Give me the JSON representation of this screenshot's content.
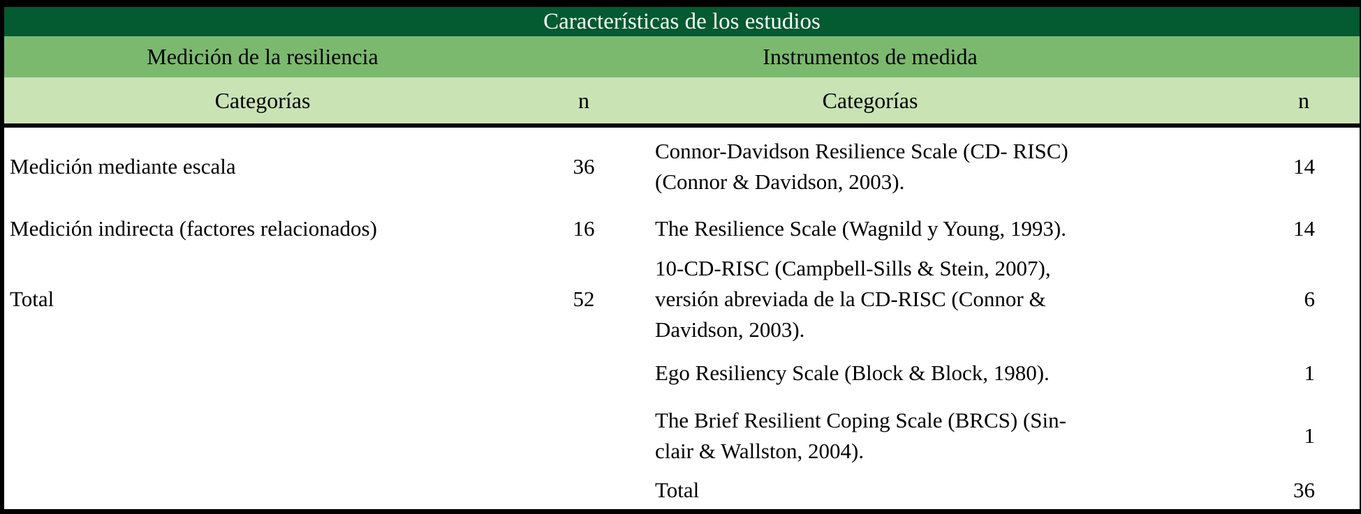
{
  "title": "Características de los estudios",
  "table": {
    "left": {
      "subheader": "Medición de la resiliencia",
      "col_category": "Categorías",
      "col_n": "n",
      "rows": [
        {
          "category": "Medición mediante escala",
          "n": "36"
        },
        {
          "category": "Medición indirecta (factores relacionados)",
          "n": "16"
        },
        {
          "category": "Total",
          "n": "52"
        }
      ]
    },
    "right": {
      "subheader": "Instrumentos de medida",
      "col_category": "Categorías",
      "col_n": "n",
      "rows": [
        {
          "category": "Connor-Davidson Resilience Scale (CD- RISC)\n(Connor & Davidson, 2003).",
          "n": "14"
        },
        {
          "category": "The Resilience Scale (Wagnild y Young, 1993).",
          "n": "14"
        },
        {
          "category": "10-CD-RISC (Campbell-Sills & Stein, 2007),\nversión abreviada de la CD-RISC (Connor &\nDavidson, 2003).",
          "n": "6"
        },
        {
          "category": "Ego Resiliency Scale (Block & Block, 1980).",
          "n": "1"
        },
        {
          "category": "The Brief Resilient Coping Scale (BRCS) (Sin-\nclair & Wallston, 2004).",
          "n": "1"
        },
        {
          "category": "Total",
          "n": "36"
        }
      ]
    }
  },
  "chart_data": {
    "type": "table",
    "title": "Características de los estudios",
    "sections": [
      {
        "header": "Medición de la resiliencia",
        "columns": [
          "Categorías",
          "n"
        ],
        "rows": [
          [
            "Medición mediante escala",
            36
          ],
          [
            "Medición indirecta (factores relacionados)",
            16
          ],
          [
            "Total",
            52
          ]
        ]
      },
      {
        "header": "Instrumentos de medida",
        "columns": [
          "Categorías",
          "n"
        ],
        "rows": [
          [
            "Connor-Davidson Resilience Scale (CD- RISC) (Connor & Davidson, 2003).",
            14
          ],
          [
            "The Resilience Scale (Wagnild y Young, 1993).",
            14
          ],
          [
            "10-CD-RISC (Campbell-Sills & Stein, 2007), versión abreviada de la CD-RISC (Connor & Davidson, 2003).",
            6
          ],
          [
            "Ego Resiliency Scale (Block & Block, 1980).",
            1
          ],
          [
            "The Brief Resilient Coping Scale (BRCS) (Sinclair & Wallston, 2004).",
            1
          ],
          [
            "Total",
            36
          ]
        ]
      }
    ]
  },
  "colors": {
    "title_bg": "#045a31",
    "subheader_bg": "#7bb96f",
    "colheader_bg": "#c9e3b5",
    "border": "#000000",
    "title_text": "#ffffff",
    "body_text": "#000000"
  }
}
